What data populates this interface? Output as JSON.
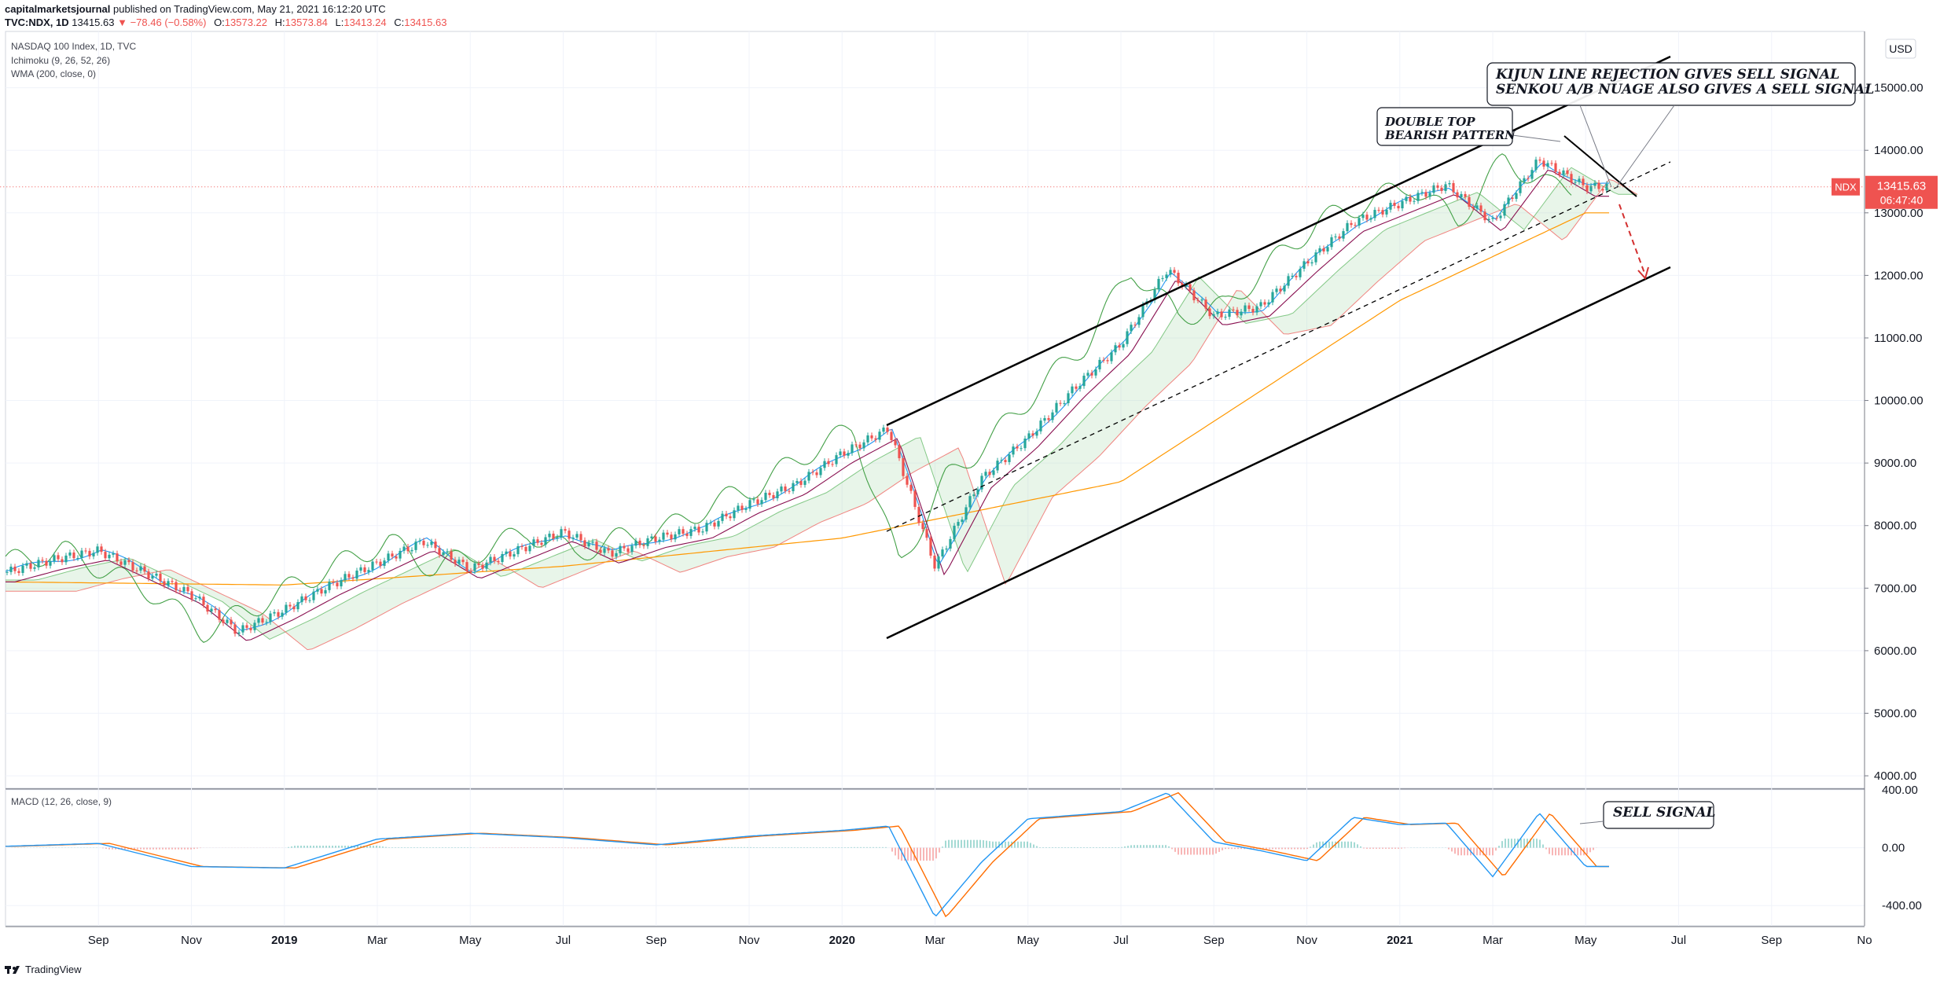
{
  "header": {
    "author": "capitalmarketsjournal",
    "published": "published on TradingView.com, May 21, 2021 16:12:20 UTC",
    "symbol": "TVC:NDX, 1D",
    "last": "13415.63",
    "change": "▼ −78.46 (−0.58%)",
    "o_label": "O:",
    "o_value": "13573.22",
    "h_label": "H:",
    "h_value": "13573.84",
    "l_label": "L:",
    "l_value": "13413.24",
    "c_label": "C:",
    "c_value": "13415.63"
  },
  "legend": {
    "title": "NASDAQ 100 Index, 1D, TVC",
    "ichimoku": "Ichimoku (9, 26, 52, 26)",
    "wma": "WMA (200, close, 0)",
    "macd": "MACD (12, 26, close, 9)"
  },
  "currency_button": "USD",
  "footer": {
    "brand": "TradingView"
  },
  "colors": {
    "up": "#26a69a",
    "down": "#ef5350",
    "tenkan": "#2196f3",
    "kijun": "#880e4f",
    "chikou": "#43a047",
    "wma": "#ff9800",
    "macd": "#2196f3",
    "signal": "#ff6d00"
  },
  "chart_data": [
    {
      "type": "candlestick",
      "title": "NASDAQ 100 Index, 1D, TVC",
      "x_ticks": [
        "Sep",
        "Nov",
        "2019",
        "Mar",
        "May",
        "Jul",
        "Sep",
        "Nov",
        "2020",
        "Mar",
        "May",
        "Jul",
        "Sep",
        "Nov",
        "2021",
        "Mar",
        "May",
        "Jul",
        "Sep",
        "No"
      ],
      "y_ticks": [
        "4000.00",
        "5000.00",
        "6000.00",
        "7000.00",
        "8000.00",
        "9000.00",
        "10000.00",
        "11000.00",
        "12000.00",
        "13000.00",
        "14000.00",
        "15000.00"
      ],
      "ylim": [
        3800,
        15900
      ],
      "price_tag": {
        "symbol": "NDX",
        "value": "13415.63",
        "countdown": "06:47:40"
      },
      "series": [
        {
          "name": "NDX",
          "x": [
            "2018-07",
            "2018-08",
            "2018-09",
            "2018-10",
            "2018-11",
            "2018-12",
            "2019-01",
            "2019-02",
            "2019-03",
            "2019-04",
            "2019-05",
            "2019-06",
            "2019-07",
            "2019-08",
            "2019-09",
            "2019-10",
            "2019-11",
            "2019-12",
            "2020-01",
            "2020-02",
            "2020-03",
            "2020-04",
            "2020-05",
            "2020-06",
            "2020-07",
            "2020-08",
            "2020-09",
            "2020-10",
            "2020-11",
            "2020-12",
            "2021-01",
            "2021-02",
            "2021-03",
            "2021-04",
            "2021-05"
          ],
          "values": [
            7250,
            7450,
            7600,
            7250,
            6900,
            6300,
            6650,
            7050,
            7400,
            7750,
            7300,
            7600,
            7900,
            7550,
            7800,
            7950,
            8350,
            8650,
            9150,
            9550,
            7350,
            8750,
            9400,
            10200,
            10900,
            12100,
            11350,
            11500,
            12200,
            12850,
            13150,
            13450,
            12850,
            13850,
            13415
          ]
        },
        {
          "name": "WMA (200, close, 0)",
          "x": [
            "2018-07",
            "2019-01",
            "2019-07",
            "2020-01",
            "2020-07",
            "2021-01",
            "2021-05"
          ],
          "values": [
            7100,
            7050,
            7350,
            7800,
            8700,
            11600,
            13000
          ]
        }
      ],
      "annotations": [
        {
          "text": [
            "DOUBLE TOP",
            "BEARISH PATTERN"
          ]
        },
        {
          "text": [
            "KIJUN LINE REJECTION GIVES SELL SIGNAL",
            "SENKOU A/B NUAGE  ALSO GIVES A SELL SIGNAL"
          ]
        }
      ]
    },
    {
      "type": "line",
      "title": "MACD (12, 26, close, 9)",
      "y_ticks": [
        "400.00",
        "0.00",
        "-400.00"
      ],
      "ylim": [
        -540,
        400
      ],
      "series": [
        {
          "name": "MACD",
          "x": [
            "2018-07",
            "2018-09",
            "2018-11",
            "2019-01",
            "2019-03",
            "2019-05",
            "2019-07",
            "2019-09",
            "2019-11",
            "2020-01",
            "2020-02",
            "2020-03",
            "2020-04",
            "2020-05",
            "2020-07",
            "2020-08",
            "2020-09",
            "2020-10",
            "2020-11",
            "2020-12",
            "2021-01",
            "2021-02",
            "2021-03",
            "2021-04",
            "2021-05"
          ],
          "values": [
            10,
            30,
            -130,
            -140,
            60,
            100,
            70,
            20,
            80,
            120,
            150,
            -480,
            -100,
            200,
            250,
            380,
            40,
            -20,
            -90,
            210,
            160,
            170,
            -200,
            240,
            -130
          ]
        }
      ],
      "annotations": [
        {
          "text": [
            "SELL SIGNAL"
          ]
        }
      ]
    }
  ]
}
